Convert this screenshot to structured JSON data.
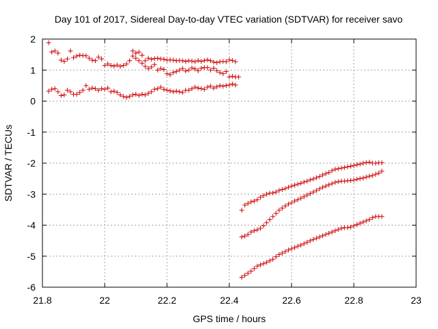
{
  "chart_data": {
    "type": "scatter",
    "title": "Day 101 of 2017, Sidereal Day-to-day VTEC variation (SDTVAR) for receiver savo",
    "xlabel": "GPS time / hours",
    "ylabel": "SDTVAR / TECUs",
    "xlim": [
      21.8,
      23.0
    ],
    "ylim": [
      -6,
      2
    ],
    "xticks": [
      "21.8",
      "22",
      "22.2",
      "22.4",
      "22.6",
      "22.8",
      "23"
    ],
    "yticks": [
      "2",
      "1",
      "0",
      "-1",
      "-2",
      "-3",
      "-4",
      "-5",
      "-6"
    ],
    "grid": true,
    "legend": "none",
    "marker_color": "#cc0000",
    "marker": "+",
    "series": [
      {
        "points": [
          [
            21.82,
            1.88
          ],
          [
            21.83,
            1.58
          ],
          [
            21.84,
            1.62
          ],
          [
            21.85,
            1.55
          ],
          [
            21.86,
            1.32
          ],
          [
            21.87,
            1.28
          ],
          [
            21.88,
            1.36
          ],
          [
            21.89,
            1.62
          ],
          [
            21.9,
            1.4
          ],
          [
            21.91,
            1.45
          ],
          [
            21.92,
            1.48
          ],
          [
            21.93,
            1.47
          ],
          [
            21.94,
            1.46
          ],
          [
            21.95,
            1.38
          ],
          [
            21.96,
            1.32
          ],
          [
            21.97,
            1.3
          ],
          [
            21.98,
            1.42
          ],
          [
            21.99,
            1.36
          ],
          [
            22.0,
            1.15
          ],
          [
            22.01,
            1.2
          ],
          [
            22.02,
            1.15
          ],
          [
            22.03,
            1.13
          ],
          [
            22.04,
            1.16
          ],
          [
            22.05,
            1.12
          ],
          [
            22.06,
            1.15
          ],
          [
            22.07,
            1.2
          ],
          [
            22.08,
            1.3
          ],
          [
            22.09,
            1.62
          ],
          [
            22.1,
            1.55
          ],
          [
            22.11,
            1.58
          ],
          [
            22.12,
            1.48
          ],
          [
            22.13,
            1.3
          ],
          [
            22.14,
            1.38
          ],
          [
            22.15,
            1.35
          ],
          [
            22.16,
            1.37
          ],
          [
            22.17,
            1.38
          ],
          [
            22.18,
            1.36
          ],
          [
            22.19,
            1.35
          ],
          [
            22.2,
            1.32
          ],
          [
            22.21,
            1.33
          ],
          [
            22.22,
            1.32
          ],
          [
            22.23,
            1.3
          ],
          [
            22.24,
            1.31
          ],
          [
            22.25,
            1.3
          ],
          [
            22.26,
            1.28
          ],
          [
            22.27,
            1.3
          ],
          [
            22.28,
            1.29
          ],
          [
            22.29,
            1.27
          ],
          [
            22.3,
            1.31
          ],
          [
            22.31,
            1.28
          ],
          [
            22.32,
            1.31
          ],
          [
            22.33,
            1.33
          ],
          [
            22.34,
            1.3
          ],
          [
            22.35,
            1.26
          ],
          [
            22.36,
            1.24
          ],
          [
            22.37,
            1.27
          ],
          [
            22.38,
            1.28
          ],
          [
            22.39,
            1.27
          ],
          [
            22.4,
            1.33
          ],
          [
            22.41,
            1.31
          ],
          [
            22.42,
            1.27
          ]
        ]
      },
      {
        "points": [
          [
            22.09,
            1.45
          ],
          [
            22.1,
            1.38
          ],
          [
            22.11,
            1.3
          ],
          [
            22.12,
            1.22
          ],
          [
            22.13,
            1.12
          ],
          [
            22.14,
            1.05
          ],
          [
            22.15,
            1.1
          ],
          [
            22.16,
            1.18
          ],
          [
            22.17,
            1.0
          ],
          [
            22.18,
            1.05
          ],
          [
            22.19,
            1.02
          ],
          [
            22.2,
            0.88
          ],
          [
            22.21,
            0.85
          ],
          [
            22.22,
            0.92
          ],
          [
            22.23,
            0.95
          ],
          [
            22.24,
            1.0
          ],
          [
            22.25,
            1.05
          ],
          [
            22.26,
            0.97
          ],
          [
            22.27,
            1.0
          ],
          [
            22.28,
            1.07
          ],
          [
            22.29,
            1.04
          ],
          [
            22.3,
            0.98
          ],
          [
            22.31,
            1.06
          ],
          [
            22.32,
            1.08
          ],
          [
            22.33,
            1.08
          ],
          [
            22.34,
            1.0
          ],
          [
            22.35,
            1.06
          ],
          [
            22.36,
            0.98
          ],
          [
            22.37,
            0.92
          ],
          [
            22.38,
            0.88
          ],
          [
            22.39,
            0.95
          ],
          [
            22.4,
            0.78
          ],
          [
            22.41,
            0.8
          ],
          [
            22.42,
            0.78
          ],
          [
            22.43,
            0.78
          ]
        ]
      },
      {
        "points": [
          [
            21.82,
            0.32
          ],
          [
            21.83,
            0.38
          ],
          [
            21.84,
            0.4
          ],
          [
            21.85,
            0.3
          ],
          [
            21.86,
            0.18
          ],
          [
            21.87,
            0.2
          ],
          [
            21.88,
            0.35
          ],
          [
            21.89,
            0.3
          ],
          [
            21.9,
            0.22
          ],
          [
            21.91,
            0.22
          ],
          [
            21.92,
            0.28
          ],
          [
            21.93,
            0.35
          ],
          [
            21.94,
            0.5
          ],
          [
            21.95,
            0.38
          ],
          [
            21.96,
            0.42
          ],
          [
            21.97,
            0.4
          ],
          [
            21.98,
            0.35
          ],
          [
            21.99,
            0.4
          ],
          [
            22.0,
            0.38
          ],
          [
            22.01,
            0.42
          ],
          [
            22.02,
            0.3
          ],
          [
            22.03,
            0.32
          ],
          [
            22.04,
            0.28
          ],
          [
            22.05,
            0.2
          ],
          [
            22.06,
            0.15
          ],
          [
            22.07,
            0.12
          ],
          [
            22.08,
            0.15
          ],
          [
            22.09,
            0.2
          ],
          [
            22.1,
            0.22
          ],
          [
            22.11,
            0.18
          ],
          [
            22.12,
            0.22
          ],
          [
            22.13,
            0.2
          ],
          [
            22.14,
            0.25
          ],
          [
            22.15,
            0.3
          ],
          [
            22.16,
            0.38
          ],
          [
            22.17,
            0.4
          ],
          [
            22.18,
            0.45
          ],
          [
            22.19,
            0.38
          ],
          [
            22.2,
            0.35
          ],
          [
            22.21,
            0.33
          ],
          [
            22.22,
            0.3
          ],
          [
            22.23,
            0.32
          ],
          [
            22.24,
            0.3
          ],
          [
            22.25,
            0.28
          ],
          [
            22.26,
            0.35
          ],
          [
            22.27,
            0.35
          ],
          [
            22.28,
            0.4
          ],
          [
            22.29,
            0.45
          ],
          [
            22.3,
            0.42
          ],
          [
            22.31,
            0.4
          ],
          [
            22.32,
            0.38
          ],
          [
            22.33,
            0.45
          ],
          [
            22.34,
            0.48
          ],
          [
            22.35,
            0.42
          ],
          [
            22.36,
            0.46
          ],
          [
            22.37,
            0.5
          ],
          [
            22.38,
            0.48
          ],
          [
            22.39,
            0.5
          ],
          [
            22.4,
            0.52
          ],
          [
            22.41,
            0.55
          ],
          [
            22.42,
            0.52
          ]
        ]
      },
      {
        "points": [
          [
            22.44,
            -3.52
          ],
          [
            22.45,
            -3.35
          ],
          [
            22.46,
            -3.3
          ],
          [
            22.47,
            -3.25
          ],
          [
            22.48,
            -3.22
          ],
          [
            22.49,
            -3.18
          ],
          [
            22.5,
            -3.1
          ],
          [
            22.51,
            -3.05
          ],
          [
            22.52,
            -3.0
          ],
          [
            22.53,
            -2.97
          ],
          [
            22.54,
            -2.96
          ],
          [
            22.55,
            -2.93
          ],
          [
            22.56,
            -2.88
          ],
          [
            22.57,
            -2.85
          ],
          [
            22.58,
            -2.82
          ],
          [
            22.59,
            -2.78
          ],
          [
            22.6,
            -2.74
          ],
          [
            22.61,
            -2.71
          ],
          [
            22.62,
            -2.68
          ],
          [
            22.63,
            -2.65
          ],
          [
            22.64,
            -2.61
          ],
          [
            22.65,
            -2.58
          ],
          [
            22.66,
            -2.54
          ],
          [
            22.67,
            -2.51
          ],
          [
            22.68,
            -2.47
          ],
          [
            22.69,
            -2.43
          ],
          [
            22.7,
            -2.38
          ],
          [
            22.71,
            -2.34
          ],
          [
            22.72,
            -2.3
          ],
          [
            22.73,
            -2.24
          ],
          [
            22.74,
            -2.2
          ],
          [
            22.75,
            -2.18
          ],
          [
            22.76,
            -2.16
          ],
          [
            22.77,
            -2.14
          ],
          [
            22.78,
            -2.12
          ],
          [
            22.79,
            -2.1
          ],
          [
            22.8,
            -2.08
          ],
          [
            22.81,
            -2.05
          ],
          [
            22.82,
            -2.03
          ],
          [
            22.83,
            -2.0
          ],
          [
            22.84,
            -1.98
          ],
          [
            22.85,
            -1.97
          ],
          [
            22.86,
            -2.0
          ],
          [
            22.87,
            -2.0
          ],
          [
            22.88,
            -1.99
          ],
          [
            22.89,
            -1.99
          ]
        ]
      },
      {
        "points": [
          [
            22.44,
            -4.38
          ],
          [
            22.45,
            -4.35
          ],
          [
            22.46,
            -4.3
          ],
          [
            22.47,
            -4.22
          ],
          [
            22.48,
            -4.18
          ],
          [
            22.49,
            -4.15
          ],
          [
            22.5,
            -4.1
          ],
          [
            22.51,
            -4.02
          ],
          [
            22.52,
            -3.92
          ],
          [
            22.53,
            -3.82
          ],
          [
            22.54,
            -3.72
          ],
          [
            22.55,
            -3.62
          ],
          [
            22.56,
            -3.52
          ],
          [
            22.57,
            -3.45
          ],
          [
            22.58,
            -3.38
          ],
          [
            22.59,
            -3.32
          ],
          [
            22.6,
            -3.28
          ],
          [
            22.61,
            -3.22
          ],
          [
            22.62,
            -3.18
          ],
          [
            22.63,
            -3.13
          ],
          [
            22.64,
            -3.08
          ],
          [
            22.65,
            -3.03
          ],
          [
            22.66,
            -2.98
          ],
          [
            22.67,
            -2.93
          ],
          [
            22.68,
            -2.88
          ],
          [
            22.69,
            -2.83
          ],
          [
            22.7,
            -2.78
          ],
          [
            22.71,
            -2.74
          ],
          [
            22.72,
            -2.7
          ],
          [
            22.73,
            -2.66
          ],
          [
            22.74,
            -2.62
          ],
          [
            22.75,
            -2.6
          ],
          [
            22.76,
            -2.58
          ],
          [
            22.77,
            -2.58
          ],
          [
            22.78,
            -2.57
          ],
          [
            22.79,
            -2.56
          ],
          [
            22.8,
            -2.55
          ],
          [
            22.81,
            -2.52
          ],
          [
            22.82,
            -2.5
          ],
          [
            22.83,
            -2.48
          ],
          [
            22.84,
            -2.45
          ],
          [
            22.85,
            -2.42
          ],
          [
            22.86,
            -2.4
          ],
          [
            22.87,
            -2.36
          ],
          [
            22.88,
            -2.32
          ],
          [
            22.89,
            -2.26
          ]
        ]
      },
      {
        "points": [
          [
            22.44,
            -5.68
          ],
          [
            22.45,
            -5.62
          ],
          [
            22.46,
            -5.55
          ],
          [
            22.47,
            -5.48
          ],
          [
            22.48,
            -5.4
          ],
          [
            22.49,
            -5.32
          ],
          [
            22.5,
            -5.28
          ],
          [
            22.51,
            -5.24
          ],
          [
            22.52,
            -5.2
          ],
          [
            22.53,
            -5.15
          ],
          [
            22.54,
            -5.1
          ],
          [
            22.55,
            -5.02
          ],
          [
            22.56,
            -4.95
          ],
          [
            22.57,
            -4.9
          ],
          [
            22.58,
            -4.85
          ],
          [
            22.59,
            -4.8
          ],
          [
            22.6,
            -4.76
          ],
          [
            22.61,
            -4.72
          ],
          [
            22.62,
            -4.68
          ],
          [
            22.63,
            -4.64
          ],
          [
            22.64,
            -4.6
          ],
          [
            22.65,
            -4.55
          ],
          [
            22.66,
            -4.5
          ],
          [
            22.67,
            -4.46
          ],
          [
            22.68,
            -4.42
          ],
          [
            22.69,
            -4.38
          ],
          [
            22.7,
            -4.34
          ],
          [
            22.71,
            -4.3
          ],
          [
            22.72,
            -4.26
          ],
          [
            22.73,
            -4.22
          ],
          [
            22.74,
            -4.18
          ],
          [
            22.75,
            -4.14
          ],
          [
            22.76,
            -4.1
          ],
          [
            22.77,
            -4.08
          ],
          [
            22.78,
            -4.08
          ],
          [
            22.79,
            -4.06
          ],
          [
            22.8,
            -4.02
          ],
          [
            22.81,
            -3.98
          ],
          [
            22.82,
            -3.94
          ],
          [
            22.83,
            -3.9
          ],
          [
            22.84,
            -3.86
          ],
          [
            22.85,
            -3.82
          ],
          [
            22.86,
            -3.76
          ],
          [
            22.87,
            -3.72
          ],
          [
            22.88,
            -3.72
          ],
          [
            22.89,
            -3.72
          ]
        ]
      }
    ]
  }
}
